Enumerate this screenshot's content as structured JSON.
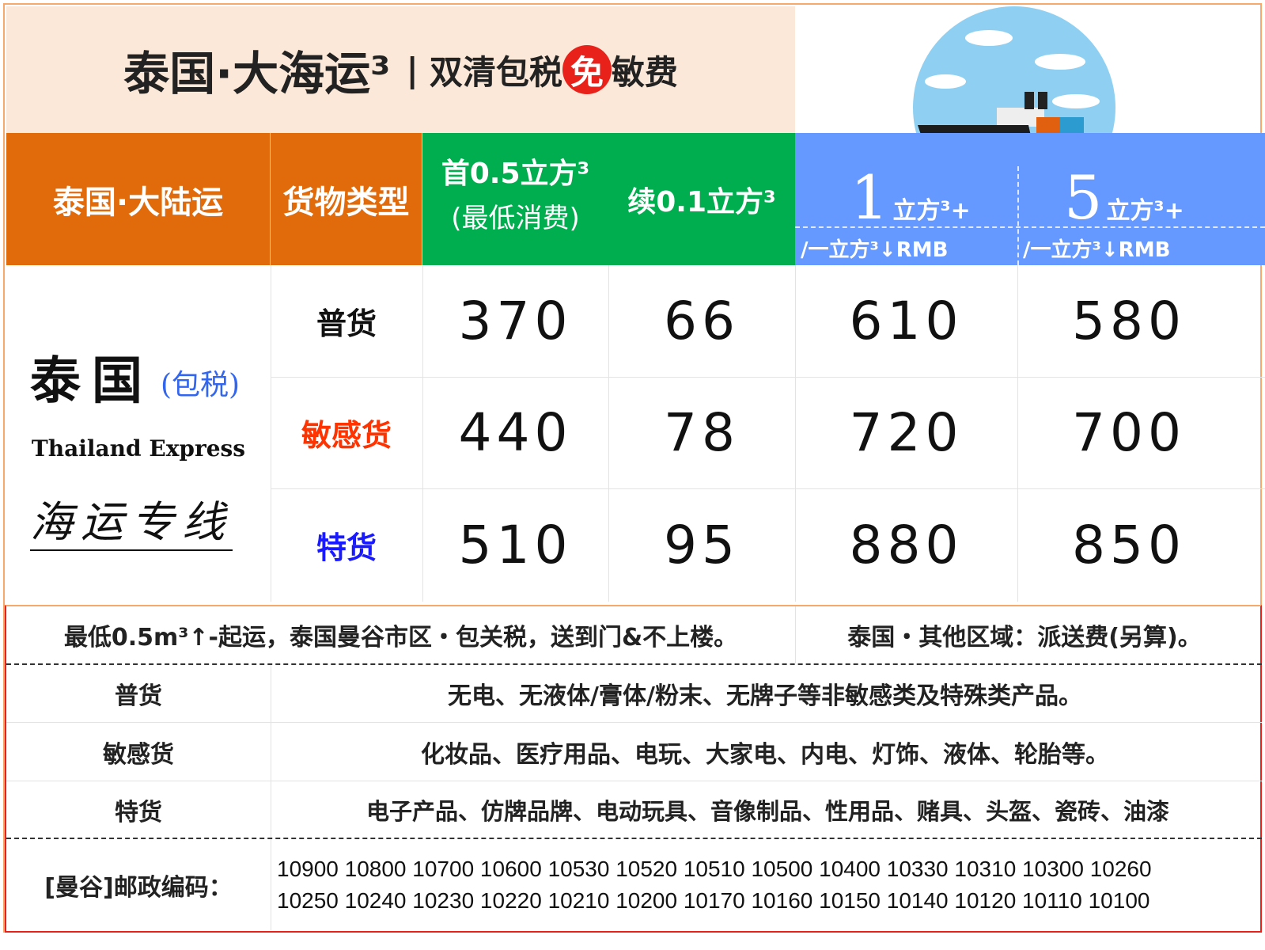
{
  "title": {
    "main": "泰国·大海运³",
    "separator": "|",
    "sub_before": "双清包税",
    "badge": "免",
    "sub_after": "敏费"
  },
  "header": {
    "route": "泰国·大陆运",
    "cargo_type": "货物类型",
    "first_line1": "首0.5立方³",
    "first_line2": "(最低消费)",
    "extra": "续0.1立方³",
    "tier1_num": "1",
    "tier1_unit": "立方³+",
    "tier1_sub": "/一立方³↓RMB",
    "tier2_num": "5",
    "tier2_unit": "立方³+",
    "tier2_sub": "/一立方³↓RMB"
  },
  "brand": {
    "cn": "泰国",
    "tax": "(包税)",
    "en": "Thailand Express",
    "line": "海运专线"
  },
  "rows": [
    {
      "cargo": "普货",
      "color": "#111111",
      "first": "370",
      "extra": "66",
      "tier1": "610",
      "tier2": "580"
    },
    {
      "cargo": "敏感货",
      "color": "#ff3300",
      "first": "440",
      "extra": "78",
      "tier1": "720",
      "tier2": "700"
    },
    {
      "cargo": "特货",
      "color": "#1a1aff",
      "first": "510",
      "extra": "95",
      "tier1": "880",
      "tier2": "850"
    }
  ],
  "notes": {
    "left": "最低0.5m³↑-起运，泰国曼谷市区・包关税，送到门&不上楼。",
    "right": "泰国・其他区域：派送费(另算)。",
    "items": [
      {
        "label": "普货",
        "desc": "无电、无液体/膏体/粉末、无牌子等非敏感类及特殊类产品。"
      },
      {
        "label": "敏感货",
        "desc": "化妆品、医疗用品、电玩、大家电、内电、灯饰、液体、轮胎等。"
      },
      {
        "label": "特货",
        "desc": "电子产品、仿牌品牌、电动玩具、音像制品、性用品、赌具、头盔、瓷砖、油漆"
      }
    ],
    "postal_label": "[曼谷]邮政编码：",
    "postal_line1": "10900 10800 10700 10600 10530 10520 10510 10500 10400 10330 10310 10300 10260",
    "postal_line2": "10250 10240 10230 10220 10210 10200 10170 10160 10150 10140 10120 10110 10100"
  },
  "colors": {
    "orange": "#e16b0b",
    "green": "#00ae4f",
    "blue": "#6699ff",
    "red": "#e8221b"
  }
}
